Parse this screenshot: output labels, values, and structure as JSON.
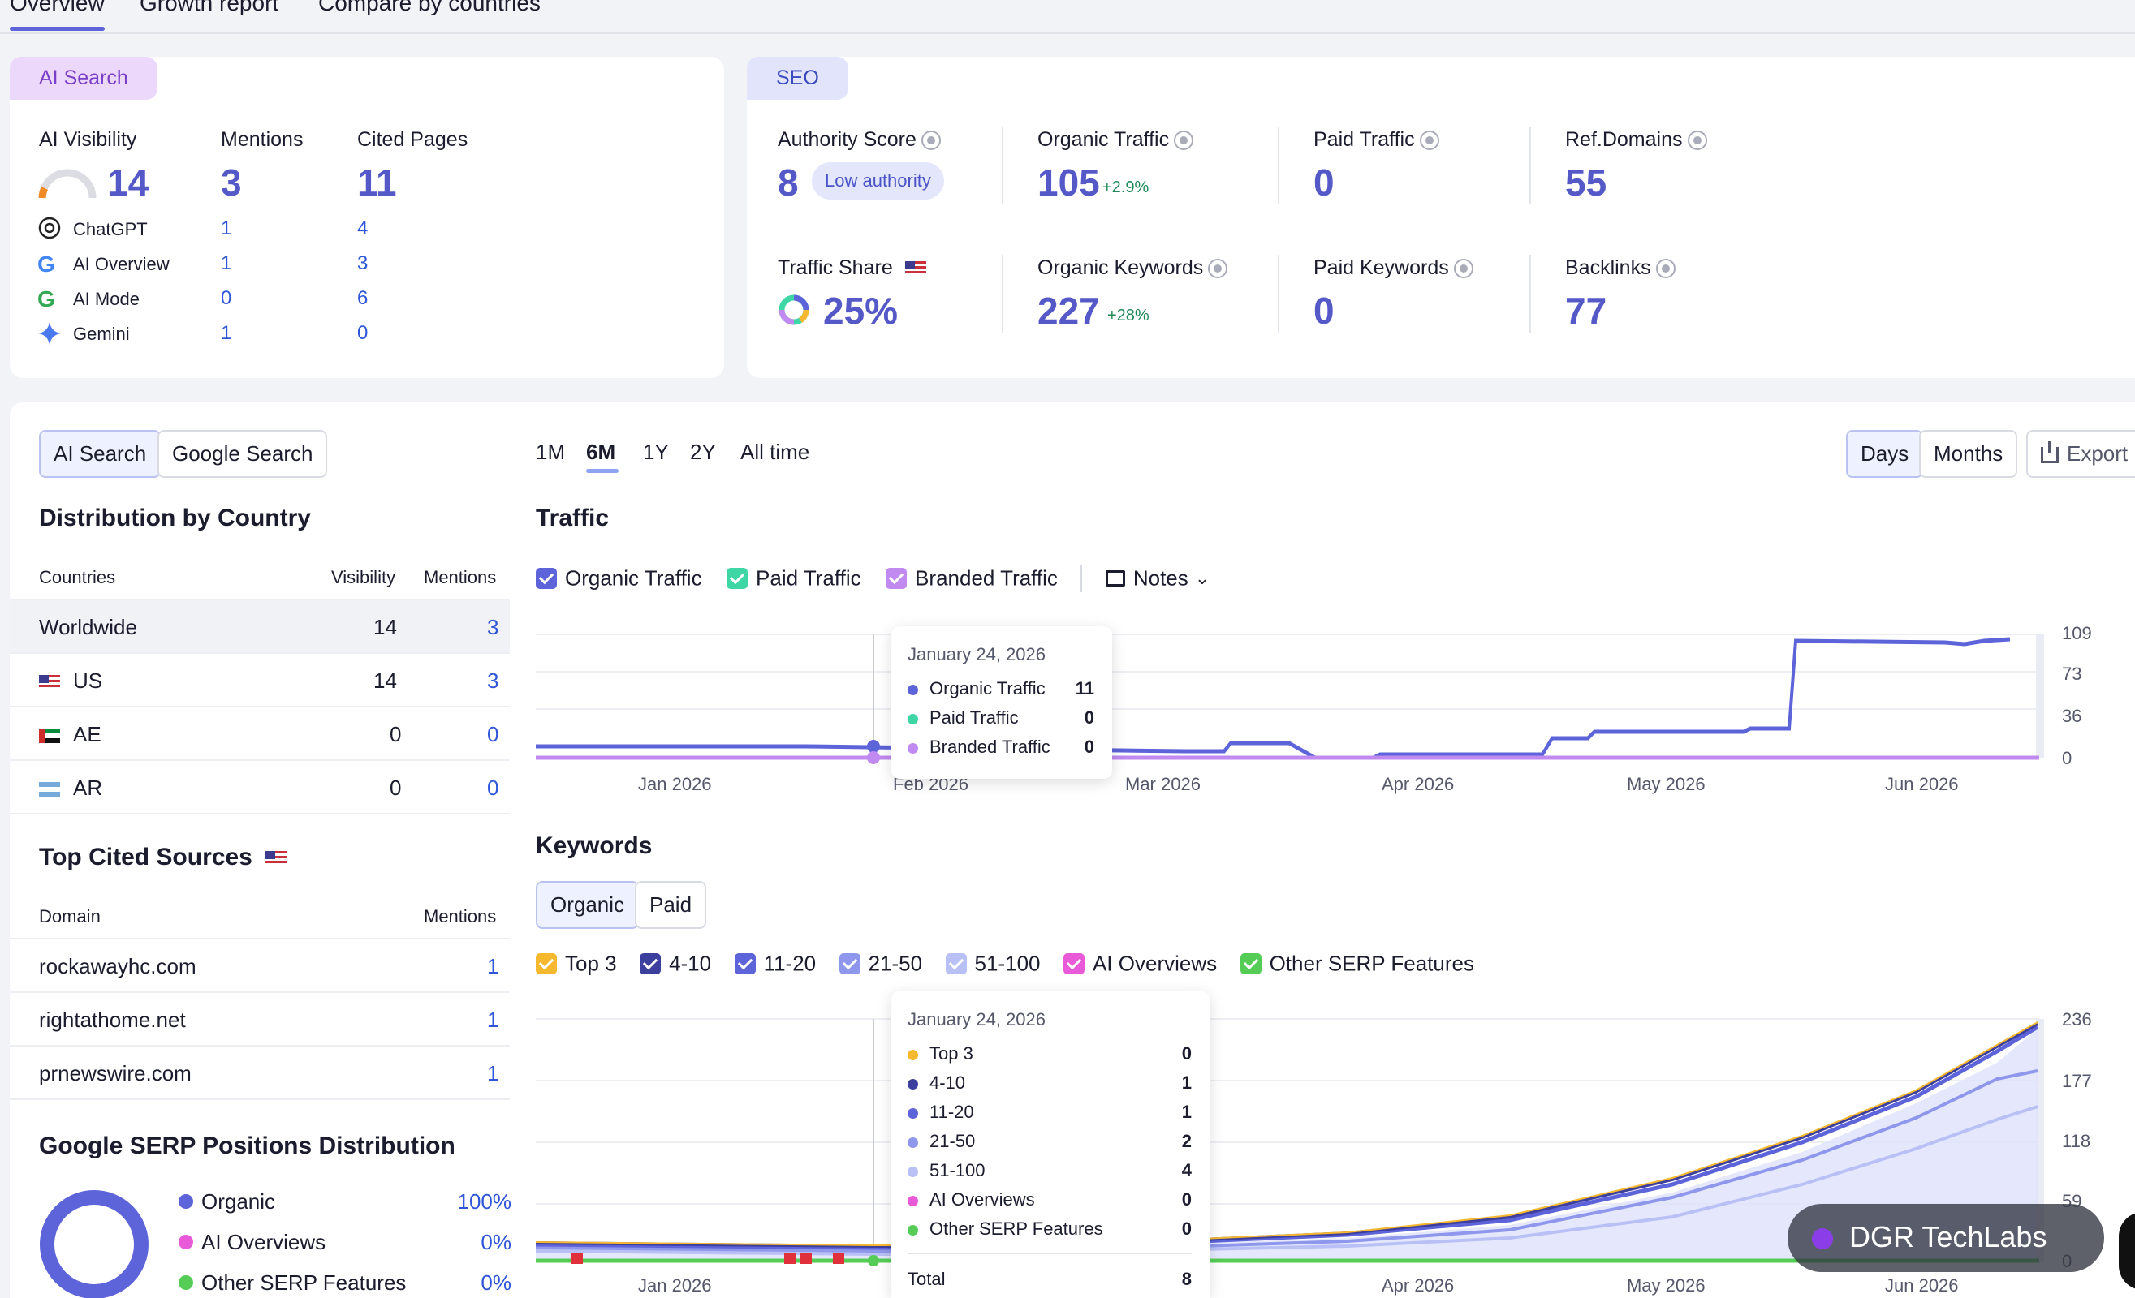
{
  "tabs": [
    "Overview",
    "Growth report",
    "Compare by countries"
  ],
  "ai_card": {
    "badge": "AI Search",
    "visibility_label": "AI Visibility",
    "visibility": "14",
    "mentions_label": "Mentions",
    "mentions": "3",
    "cited_label": "Cited Pages",
    "cited": "11",
    "engines": [
      {
        "name": "ChatGPT",
        "mentions": "1",
        "cited": "4"
      },
      {
        "name": "AI Overview",
        "mentions": "1",
        "cited": "3"
      },
      {
        "name": "AI Mode",
        "mentions": "0",
        "cited": "6"
      },
      {
        "name": "Gemini",
        "mentions": "1",
        "cited": "0"
      }
    ]
  },
  "seo_card": {
    "badge": "SEO",
    "authority_label": "Authority Score",
    "authority": "8",
    "authority_tag": "Low authority",
    "organic_label": "Organic Traffic",
    "organic": "105",
    "organic_change": "+2.9%",
    "paid_label": "Paid Traffic",
    "paid": "0",
    "refdomains_label": "Ref.Domains",
    "refdomains": "55",
    "share_label": "Traffic Share",
    "share": "25%",
    "keywords_label": "Organic Keywords",
    "keywords": "227",
    "keywords_change": "+28%",
    "paidkw_label": "Paid Keywords",
    "paidkw": "0",
    "backlinks_label": "Backlinks",
    "backlinks": "77"
  },
  "left": {
    "toggle": [
      "AI Search",
      "Google Search"
    ],
    "dist_title": "Distribution by Country",
    "dist_cols": [
      "Countries",
      "Visibility",
      "Mentions"
    ],
    "dist_rows": [
      {
        "country": "Worldwide",
        "visibility": "14",
        "mentions": "3"
      },
      {
        "country": "US",
        "visibility": "14",
        "mentions": "3"
      },
      {
        "country": "AE",
        "visibility": "0",
        "mentions": "0"
      },
      {
        "country": "AR",
        "visibility": "0",
        "mentions": "0"
      }
    ],
    "sources_title": "Top Cited Sources",
    "sources_cols": [
      "Domain",
      "Mentions"
    ],
    "sources": [
      {
        "domain": "rockawayhc.com",
        "mentions": "1"
      },
      {
        "domain": "rightathome.net",
        "mentions": "1"
      },
      {
        "domain": "prnewswire.com",
        "mentions": "1"
      }
    ],
    "serp_title": "Google SERP Positions Distribution",
    "serp": [
      {
        "name": "Organic",
        "value": "100%",
        "color": "#5d63d8"
      },
      {
        "name": "AI Overviews",
        "value": "0%",
        "color": "#e85ad8"
      },
      {
        "name": "Other SERP Features",
        "value": "0%",
        "color": "#55cc55"
      }
    ]
  },
  "periods": [
    "1M",
    "6M",
    "1Y",
    "2Y",
    "All time"
  ],
  "view": [
    "Days",
    "Months"
  ],
  "export": "Export",
  "traffic": {
    "title": "Traffic",
    "legend": [
      "Organic Traffic",
      "Paid Traffic",
      "Branded Traffic"
    ],
    "notes": "Notes",
    "y_ticks": [
      "109",
      "73",
      "36",
      "0"
    ],
    "x_ticks": [
      "Jan 2026",
      "Feb 2026",
      "Mar 2026",
      "Apr 2026",
      "May 2026",
      "Jun 2026"
    ],
    "tooltip": {
      "date": "January 24, 2026",
      "rows": [
        {
          "name": "Organic Traffic",
          "value": "11",
          "color": "#5d63d8"
        },
        {
          "name": "Paid Traffic",
          "value": "0",
          "color": "#3fd6a6"
        },
        {
          "name": "Branded Traffic",
          "value": "0",
          "color": "#c08af0"
        }
      ]
    }
  },
  "keywords_chart": {
    "title": "Keywords",
    "toggle": [
      "Organic",
      "Paid"
    ],
    "legend": [
      {
        "name": "Top 3",
        "color": "#f5b82e"
      },
      {
        "name": "4-10",
        "color": "#3d3f9e"
      },
      {
        "name": "11-20",
        "color": "#5d63d8"
      },
      {
        "name": "21-50",
        "color": "#8f97ec"
      },
      {
        "name": "51-100",
        "color": "#b9c0f6"
      },
      {
        "name": "AI Overviews",
        "color": "#e85ad8"
      },
      {
        "name": "Other SERP Features",
        "color": "#55cc55"
      }
    ],
    "y_ticks": [
      "236",
      "177",
      "118",
      "59",
      "0"
    ],
    "x_ticks": [
      "Jan 2026",
      "Apr 2026",
      "May 2026",
      "Jun 2026"
    ],
    "tooltip": {
      "date": "January 24, 2026",
      "rows": [
        {
          "name": "Top 3",
          "value": "0",
          "color": "#f5b82e"
        },
        {
          "name": "4-10",
          "value": "1",
          "color": "#3d3f9e"
        },
        {
          "name": "11-20",
          "value": "1",
          "color": "#5d63d8"
        },
        {
          "name": "21-50",
          "value": "2",
          "color": "#8f97ec"
        },
        {
          "name": "51-100",
          "value": "4",
          "color": "#b9c0f6"
        },
        {
          "name": "AI Overviews",
          "value": "0",
          "color": "#e85ad8"
        },
        {
          "name": "Other SERP Features",
          "value": "0",
          "color": "#55cc55"
        }
      ],
      "total_label": "Total",
      "total": "8"
    }
  },
  "watermark": "DGR TechLabs"
}
